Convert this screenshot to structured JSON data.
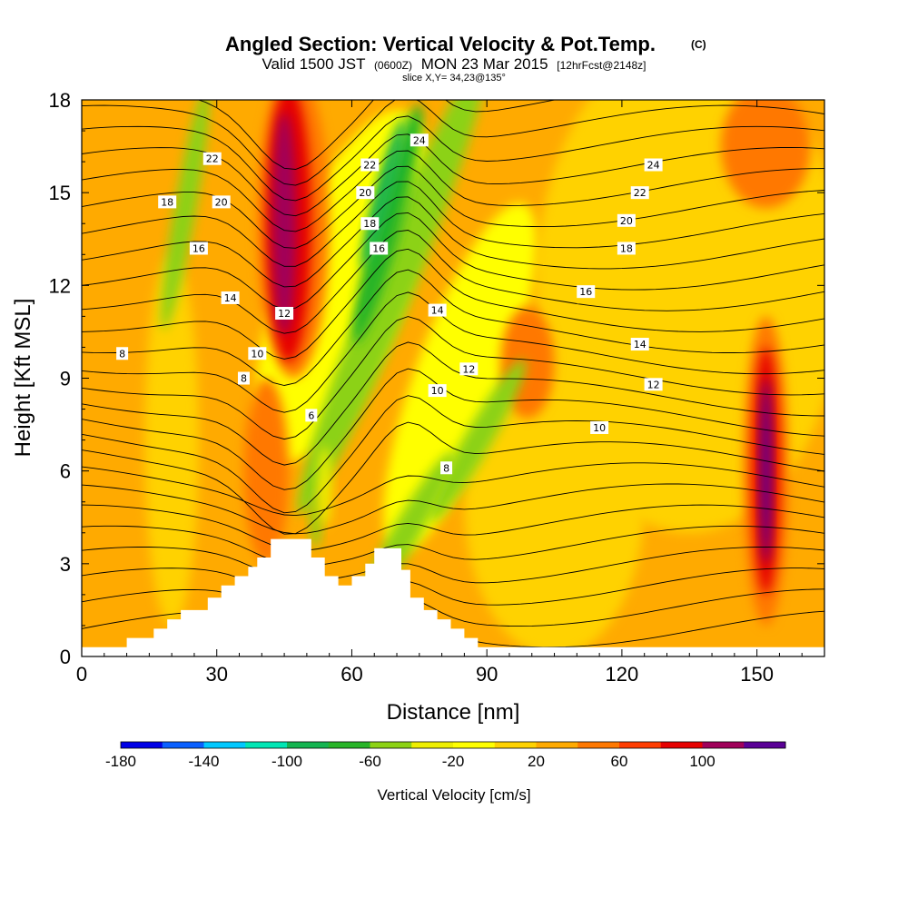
{
  "chart_data": {
    "type": "heatmap",
    "title": "Angled Section: Vertical Velocity & Pot.Temp.",
    "title_unit": "(C)",
    "subtitle": {
      "valid": "Valid 1500 JST",
      "utc": "(0600Z)",
      "date": "MON 23 Mar 2015",
      "run": "[12hrFcst@2148z]"
    },
    "slice_note": "slice X,Y= 34,23@135°",
    "xlabel": "Distance [nm]",
    "ylabel": "Height [Kft MSL]",
    "xlim": [
      0,
      165
    ],
    "ylim": [
      0,
      18
    ],
    "x_ticks": [
      0,
      30,
      60,
      90,
      120,
      150
    ],
    "y_ticks": [
      0,
      3,
      6,
      9,
      12,
      15,
      18
    ],
    "shading": {
      "name": "Vertical Velocity [cm/s]",
      "levels": [
        -180,
        -160,
        -140,
        -120,
        -100,
        -80,
        -60,
        -40,
        -20,
        0,
        20,
        40,
        60,
        80,
        100,
        120
      ],
      "tick_labels": [
        -180,
        -140,
        -100,
        -60,
        -20,
        20,
        60,
        100
      ],
      "colors": [
        "#0000e6",
        "#0a60ff",
        "#00c8ff",
        "#00e6b4",
        "#14b450",
        "#28b428",
        "#8cd214",
        "#eeee00",
        "#ffff00",
        "#ffd200",
        "#ffaa00",
        "#ff7800",
        "#ff3c00",
        "#e60000",
        "#a0005a",
        "#5a0096"
      ],
      "features": [
        {
          "x": 46,
          "y_range": [
            8.5,
            18
          ],
          "value": 110
        },
        {
          "x": 67,
          "y_range": [
            3,
            18
          ],
          "value": -100
        },
        {
          "x": 152,
          "y_range": [
            2,
            10
          ],
          "value": 100
        },
        {
          "x": 23,
          "y_range": [
            11,
            18
          ],
          "value": -60
        }
      ]
    },
    "contours": {
      "name": "Pot.Temp. (C)",
      "labels": [
        {
          "text": "24",
          "x": 75,
          "y": 16.7
        },
        {
          "text": "24",
          "x": 127,
          "y": 15.9
        },
        {
          "text": "22",
          "x": 29,
          "y": 16.1
        },
        {
          "text": "22",
          "x": 64,
          "y": 15.9
        },
        {
          "text": "22",
          "x": 124,
          "y": 15.0
        },
        {
          "text": "20",
          "x": 31,
          "y": 14.7
        },
        {
          "text": "20",
          "x": 63,
          "y": 15.0
        },
        {
          "text": "20",
          "x": 121,
          "y": 14.1
        },
        {
          "text": "18",
          "x": 19,
          "y": 14.7
        },
        {
          "text": "18",
          "x": 64,
          "y": 14.0
        },
        {
          "text": "18",
          "x": 121,
          "y": 13.2
        },
        {
          "text": "16",
          "x": 26,
          "y": 13.2
        },
        {
          "text": "16",
          "x": 66,
          "y": 13.2
        },
        {
          "text": "16",
          "x": 112,
          "y": 11.8
        },
        {
          "text": "14",
          "x": 33,
          "y": 11.6
        },
        {
          "text": "14",
          "x": 79,
          "y": 11.2
        },
        {
          "text": "14",
          "x": 124,
          "y": 10.1
        },
        {
          "text": "12",
          "x": 45,
          "y": 11.1
        },
        {
          "text": "12",
          "x": 86,
          "y": 9.3
        },
        {
          "text": "12",
          "x": 127,
          "y": 8.8
        },
        {
          "text": "10",
          "x": 39,
          "y": 9.8
        },
        {
          "text": "10",
          "x": 79,
          "y": 8.6
        },
        {
          "text": "10",
          "x": 115,
          "y": 7.4
        },
        {
          "text": "8",
          "x": 9,
          "y": 9.8
        },
        {
          "text": "8",
          "x": 36,
          "y": 9.0
        },
        {
          "text": "8",
          "x": 81,
          "y": 6.1
        },
        {
          "text": "6",
          "x": 51,
          "y": 7.8
        }
      ]
    },
    "terrain": [
      [
        0,
        0.3
      ],
      [
        10,
        0.3
      ],
      [
        10,
        0.6
      ],
      [
        16,
        0.6
      ],
      [
        16,
        0.9
      ],
      [
        19,
        0.9
      ],
      [
        19,
        1.2
      ],
      [
        22,
        1.2
      ],
      [
        22,
        1.5
      ],
      [
        28,
        1.5
      ],
      [
        28,
        1.9
      ],
      [
        31,
        1.9
      ],
      [
        31,
        2.3
      ],
      [
        34,
        2.3
      ],
      [
        34,
        2.6
      ],
      [
        37,
        2.6
      ],
      [
        37,
        2.9
      ],
      [
        39,
        2.9
      ],
      [
        39,
        3.2
      ],
      [
        42,
        3.2
      ],
      [
        42,
        3.8
      ],
      [
        51,
        3.8
      ],
      [
        51,
        3.2
      ],
      [
        54,
        3.2
      ],
      [
        54,
        2.6
      ],
      [
        57,
        2.6
      ],
      [
        57,
        2.3
      ],
      [
        60,
        2.3
      ],
      [
        60,
        2.6
      ],
      [
        63,
        2.6
      ],
      [
        63,
        3.0
      ],
      [
        65,
        3.0
      ],
      [
        65,
        3.5
      ],
      [
        71,
        3.5
      ],
      [
        71,
        2.8
      ],
      [
        73,
        2.8
      ],
      [
        73,
        1.9
      ],
      [
        76,
        1.9
      ],
      [
        76,
        1.5
      ],
      [
        79,
        1.5
      ],
      [
        79,
        1.2
      ],
      [
        82,
        1.2
      ],
      [
        82,
        0.9
      ],
      [
        85,
        0.9
      ],
      [
        85,
        0.6
      ],
      [
        88,
        0.6
      ],
      [
        88,
        0.3
      ],
      [
        165,
        0.3
      ]
    ]
  }
}
